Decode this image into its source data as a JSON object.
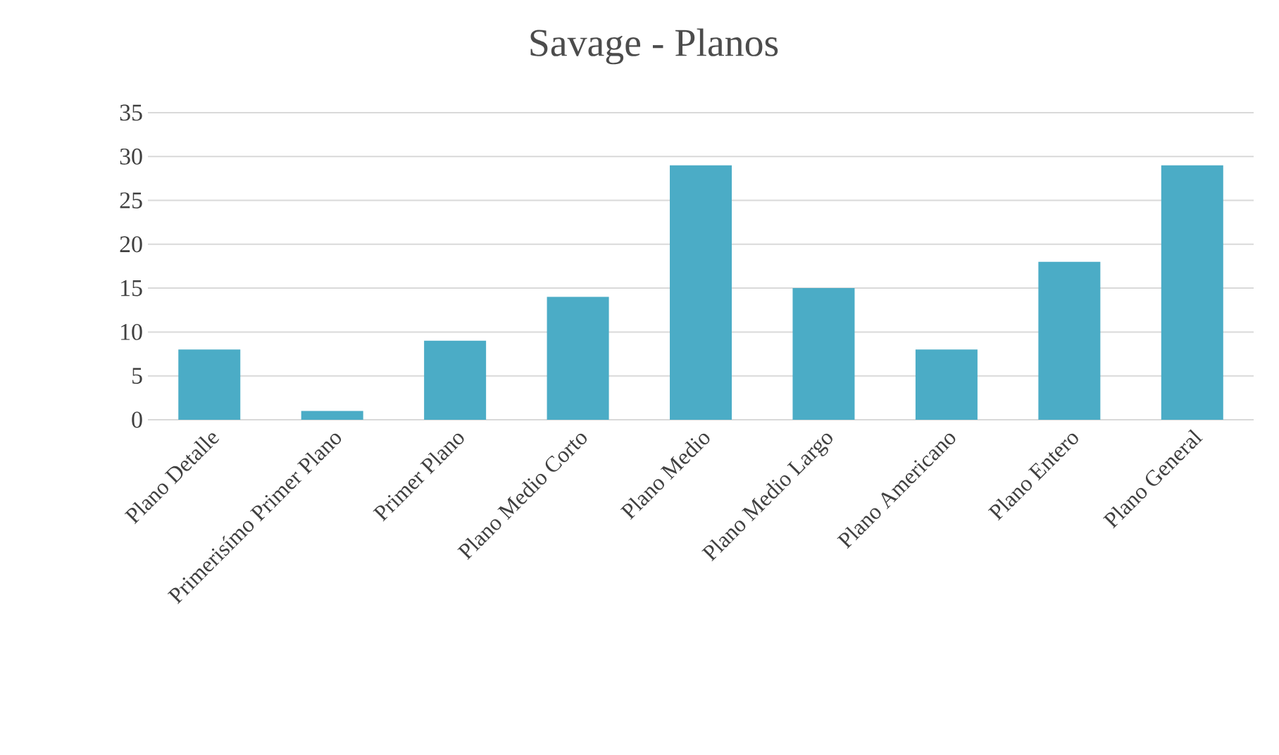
{
  "chart_data": {
    "type": "bar",
    "title": "Savage - Planos",
    "categories": [
      "Plano Detalle",
      "Primerisímo Primer Plano",
      "Primer Plano",
      "Plano Medio Corto",
      "Plano Medio",
      "Plano Medio Largo",
      "Plano Americano",
      "Plano Entero",
      "Plano General"
    ],
    "values": [
      8,
      1,
      9,
      14,
      29,
      15,
      8,
      18,
      29
    ],
    "color": "#4bacc6",
    "ylim": [
      0,
      35
    ],
    "yticks": [
      0,
      5,
      10,
      15,
      20,
      25,
      30,
      35
    ],
    "grid": "y"
  }
}
